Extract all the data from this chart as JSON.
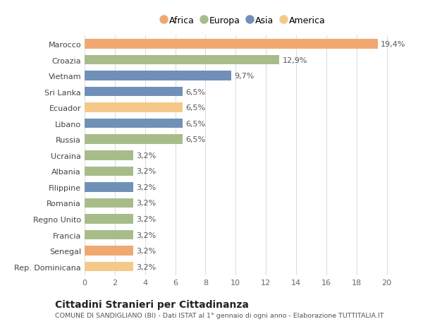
{
  "categories": [
    "Rep. Dominicana",
    "Senegal",
    "Francia",
    "Regno Unito",
    "Romania",
    "Filippine",
    "Albania",
    "Ucraina",
    "Russia",
    "Libano",
    "Ecuador",
    "Sri Lanka",
    "Vietnam",
    "Croazia",
    "Marocco"
  ],
  "values": [
    3.2,
    3.2,
    3.2,
    3.2,
    3.2,
    3.2,
    3.2,
    3.2,
    6.5,
    6.5,
    6.5,
    6.5,
    9.7,
    12.9,
    19.4
  ],
  "colors": [
    "#F5C98A",
    "#F0A870",
    "#A8BC8A",
    "#A8BC8A",
    "#A8BC8A",
    "#7090B8",
    "#A8BC8A",
    "#A8BC8A",
    "#A8BC8A",
    "#7090B8",
    "#F5C98A",
    "#7090B8",
    "#7090B8",
    "#A8BC8A",
    "#F0A870"
  ],
  "labels": [
    "3,2%",
    "3,2%",
    "3,2%",
    "3,2%",
    "3,2%",
    "3,2%",
    "3,2%",
    "3,2%",
    "6,5%",
    "6,5%",
    "6,5%",
    "6,5%",
    "9,7%",
    "12,9%",
    "19,4%"
  ],
  "legend": [
    {
      "label": "Africa",
      "color": "#F0A870"
    },
    {
      "label": "Europa",
      "color": "#A8BC8A"
    },
    {
      "label": "Asia",
      "color": "#7090B8"
    },
    {
      "label": "America",
      "color": "#F5C98A"
    }
  ],
  "xlim": [
    0,
    21
  ],
  "xticks": [
    0,
    2,
    4,
    6,
    8,
    10,
    12,
    14,
    16,
    18,
    20
  ],
  "title": "Cittadini Stranieri per Cittadinanza",
  "subtitle": "COMUNE DI SANDIGLIANO (BI) - Dati ISTAT al 1° gennaio di ogni anno - Elaborazione TUTTITALIA.IT",
  "background_color": "#ffffff",
  "grid_color": "#dddddd",
  "bar_height": 0.6,
  "label_fontsize": 8,
  "tick_fontsize": 8,
  "ylabel_fontsize": 8
}
